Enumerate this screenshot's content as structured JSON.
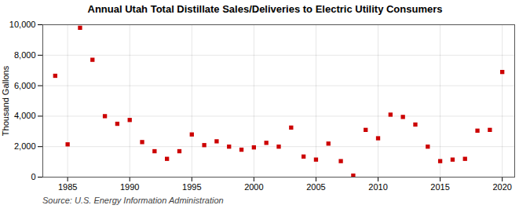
{
  "chart_data": {
    "type": "scatter",
    "title": "Annual Utah Total Distillate Sales/Deliveries to Electric Utility Consumers",
    "ylabel": "Thousand Gallons",
    "annotations": [
      "Source: U.S. Energy Information Administration"
    ],
    "x": [
      1984,
      1985,
      1986,
      1987,
      1988,
      1989,
      1990,
      1991,
      1992,
      1993,
      1994,
      1995,
      1996,
      1997,
      1998,
      1999,
      2000,
      2001,
      2002,
      2003,
      2004,
      2005,
      2006,
      2007,
      2008,
      2009,
      2010,
      2011,
      2012,
      2013,
      2014,
      2015,
      2016,
      2017,
      2018,
      2019,
      2020
    ],
    "values": [
      6650,
      2150,
      9800,
      7700,
      4000,
      3500,
      3750,
      2300,
      1700,
      1200,
      1700,
      2800,
      2100,
      2350,
      2000,
      1800,
      1950,
      2250,
      2000,
      3250,
      1350,
      1150,
      2200,
      1050,
      100,
      3100,
      2550,
      4100,
      3950,
      3450,
      2000,
      1050,
      1150,
      1200,
      3050,
      3100,
      6900
    ],
    "color": "#cc0000",
    "marker": "square",
    "xlim": [
      1983,
      2021
    ],
    "xticks": [
      1985,
      1990,
      1995,
      2000,
      2005,
      2010,
      2015,
      2020
    ],
    "ylim": [
      0,
      10000
    ],
    "yticks": [
      0,
      {
        "value": 2000,
        "label": "2,000"
      },
      {
        "value": 4000,
        "label": "4,000"
      },
      {
        "value": 6000,
        "label": "6,000"
      },
      {
        "value": 8000,
        "label": "8,000"
      },
      {
        "value": 10000,
        "label": "10,000"
      }
    ],
    "grid": true
  }
}
